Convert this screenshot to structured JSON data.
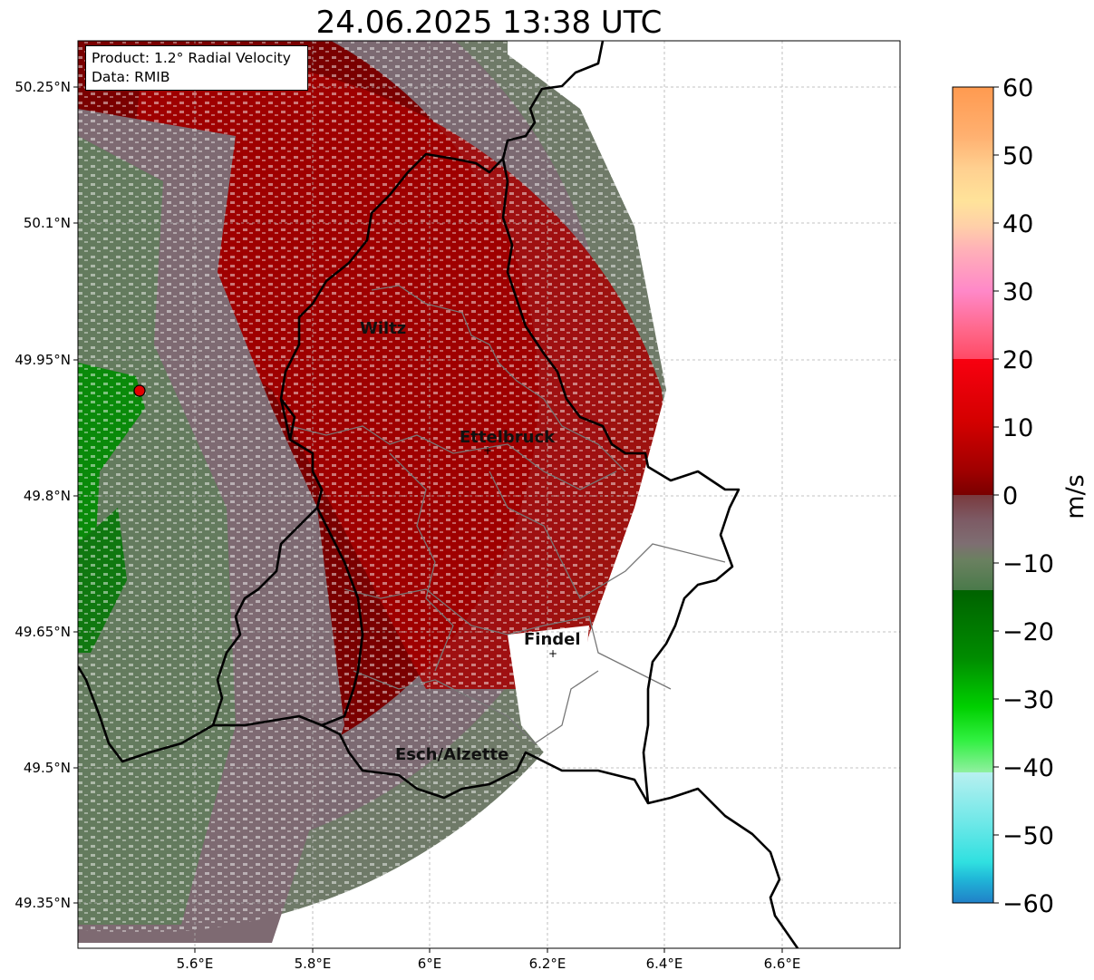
{
  "title": "24.06.2025 13:38 UTC",
  "info_box": {
    "product": "Product: 1.2° Radial Velocity",
    "data": "Data: RMIB"
  },
  "lat_ticks": [
    "50.25°N",
    "50.1°N",
    "49.95°N",
    "49.8°N",
    "49.65°N",
    "49.5°N",
    "49.35°N"
  ],
  "lon_ticks": [
    "5.6°E",
    "5.8°E",
    "6°E",
    "6.2°E",
    "6.4°E",
    "6.6°E"
  ],
  "cities": [
    {
      "name": "Wiltz"
    },
    {
      "name": "Ettelbruck"
    },
    {
      "name": "Findel"
    },
    {
      "name": "Esch/Alzette"
    }
  ],
  "colorbar": {
    "unit": "m/s",
    "ticks": [
      "60",
      "50",
      "40",
      "30",
      "20",
      "10",
      "0",
      "−10",
      "−20",
      "−30",
      "−40",
      "−50",
      "−60"
    ],
    "range": [
      -60,
      60
    ],
    "colors": [
      "#ff9a50",
      "#ffbd80",
      "#ffe19a",
      "#ffb0c0",
      "#ff88c8",
      "#ff5577",
      "#f00010",
      "#c00000",
      "#7a0000",
      "#7a6670",
      "#6a8060",
      "#006400",
      "#00a000",
      "#00e000",
      "#55f070",
      "#b0f0f0",
      "#30e0e0",
      "#2090d0"
    ]
  },
  "radar_marker": "red radar site",
  "palette": {
    "velocity_strong_recede": "#a00000",
    "velocity_recede": "#7a0000",
    "velocity_near_zero": "#7e6a72",
    "velocity_approach": "#5f8058",
    "velocity_strong_approach": "#0a8a0a"
  }
}
